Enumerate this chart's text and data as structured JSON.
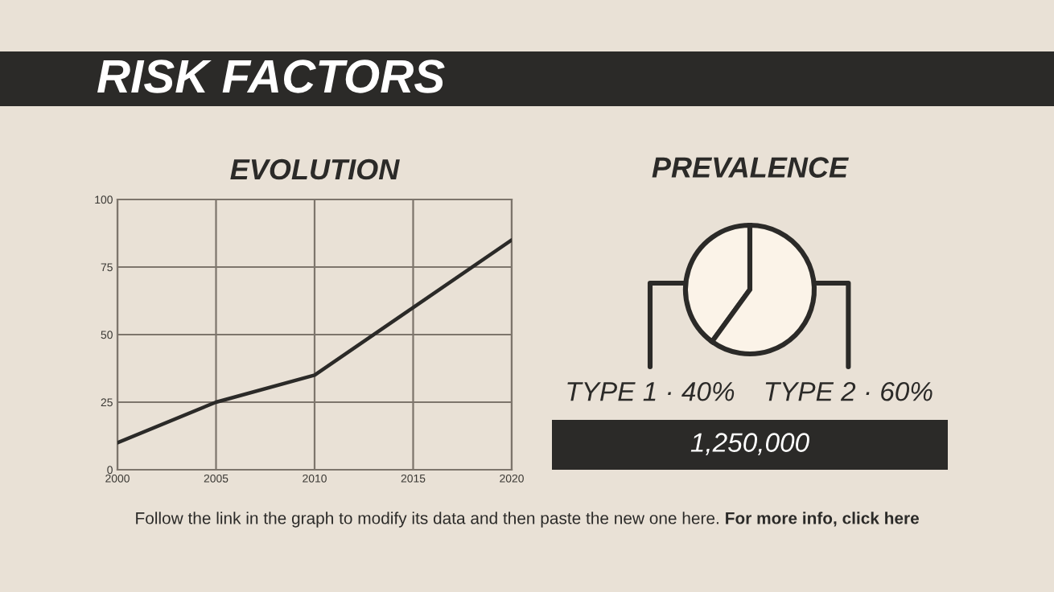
{
  "chart_data": [
    {
      "type": "line",
      "title": "EVOLUTION",
      "x": [
        2000,
        2005,
        2010,
        2015,
        2020
      ],
      "series": [
        {
          "color": "#2b2a28",
          "values": [
            10,
            25,
            35,
            60,
            85
          ]
        }
      ],
      "xlim": [
        2000,
        2020
      ],
      "xticks": [
        2000,
        2005,
        2010,
        2015,
        2020
      ],
      "ylim": [
        0,
        100
      ],
      "yticks": [
        0,
        25,
        50,
        75,
        100
      ],
      "grid": true,
      "legend": false,
      "marker": "none",
      "line_style": "solid",
      "annotations": [
        "RISK FACTORS",
        "Follow the link in the graph to modify its data and then paste the new one here.",
        "For more info, click here"
      ]
    },
    {
      "type": "pie",
      "title": "PREVALENCE",
      "categories": [
        "TYPE 1 · 40%",
        "TYPE 2 · 60%"
      ],
      "values": [
        40,
        60
      ],
      "colors": [
        "#fbf3e8",
        "#fbf3e8"
      ],
      "legend": false,
      "annotations": [
        "1,250,000"
      ]
    }
  ]
}
